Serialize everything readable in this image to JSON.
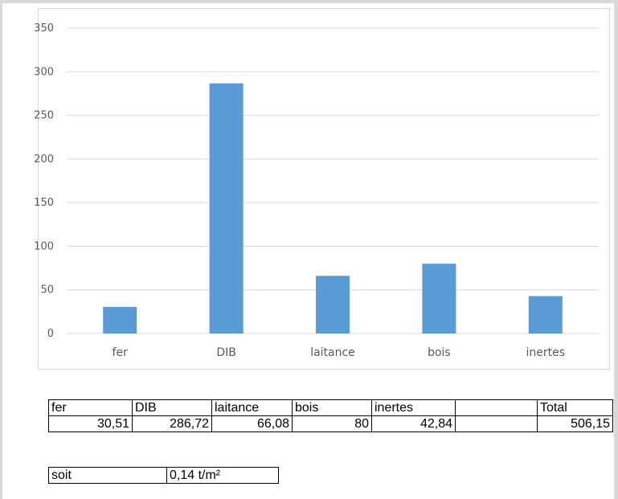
{
  "chart_data": {
    "type": "bar",
    "categories": [
      "fer",
      "DIB",
      "laitance",
      "bois",
      "inertes"
    ],
    "values": [
      30.51,
      286.72,
      66.08,
      80,
      42.84
    ],
    "ylim": [
      0,
      350
    ],
    "yticks": [
      0,
      50,
      100,
      150,
      200,
      250,
      300,
      350
    ],
    "bar_color": "#5b9bd5",
    "grid": true,
    "legend": "none"
  },
  "table": {
    "headers": [
      "fer",
      "DIB",
      "laitance",
      "bois",
      "inertes",
      "",
      "Total"
    ],
    "values": [
      "30,51",
      "286,72",
      "66,08",
      "80",
      "42,84",
      "",
      "506,15"
    ]
  },
  "summary": {
    "label": "soit",
    "value": "0,14 t/m²"
  }
}
